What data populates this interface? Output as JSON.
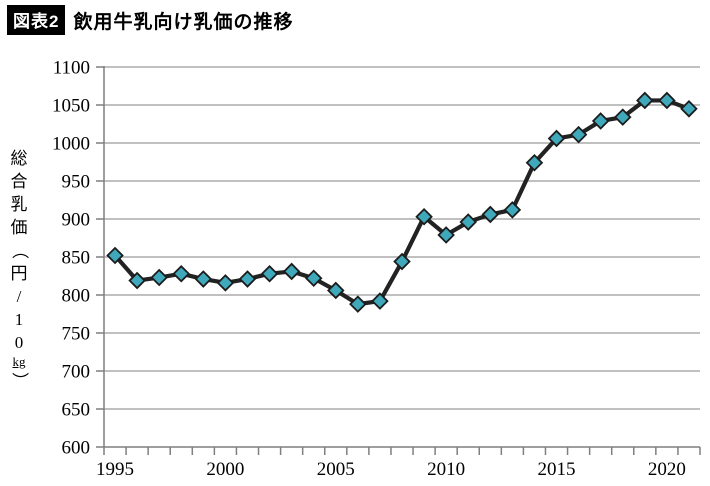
{
  "header": {
    "badge": "図表2",
    "title": "飲用牛乳向け乳価の推移"
  },
  "chart_data": {
    "type": "line",
    "title": "飲用牛乳向け乳価の推移",
    "ylabel": "総合乳価（円/10kg）",
    "ylabel_segments": [
      {
        "t": "総"
      },
      {
        "t": "合"
      },
      {
        "t": "乳"
      },
      {
        "t": "価"
      },
      {
        "t": "（",
        "rotate": true
      },
      {
        "t": "円"
      },
      {
        "t": "/"
      },
      {
        "t": "1"
      },
      {
        "t": "0"
      },
      {
        "t": "kg",
        "small": true
      },
      {
        "t": "）",
        "rotate": true
      }
    ],
    "x": [
      1995,
      1996,
      1997,
      1998,
      1999,
      2000,
      2001,
      2002,
      2003,
      2004,
      2005,
      2006,
      2007,
      2008,
      2009,
      2010,
      2011,
      2012,
      2013,
      2014,
      2015,
      2016,
      2017,
      2018,
      2019,
      2020,
      2021
    ],
    "values": [
      852,
      819,
      823,
      828,
      821,
      816,
      821,
      828,
      831,
      822,
      806,
      788,
      792,
      844,
      903,
      879,
      896,
      906,
      912,
      974,
      1006,
      1011,
      1029,
      1034,
      1056,
      1056,
      1045
    ],
    "ylim": [
      600,
      1100
    ],
    "ytick_step": 50,
    "xtick_label_years": [
      1995,
      2000,
      2005,
      2010,
      2015,
      2020
    ],
    "grid": true,
    "legend_position": "none",
    "marker": "diamond",
    "colors": {
      "line": "#222222",
      "marker_fill": "#3FA9BB",
      "marker_stroke": "#1c1c1c",
      "grid": "#9b9b9b",
      "axis": "#7f7f7f",
      "text": "#000000"
    }
  }
}
